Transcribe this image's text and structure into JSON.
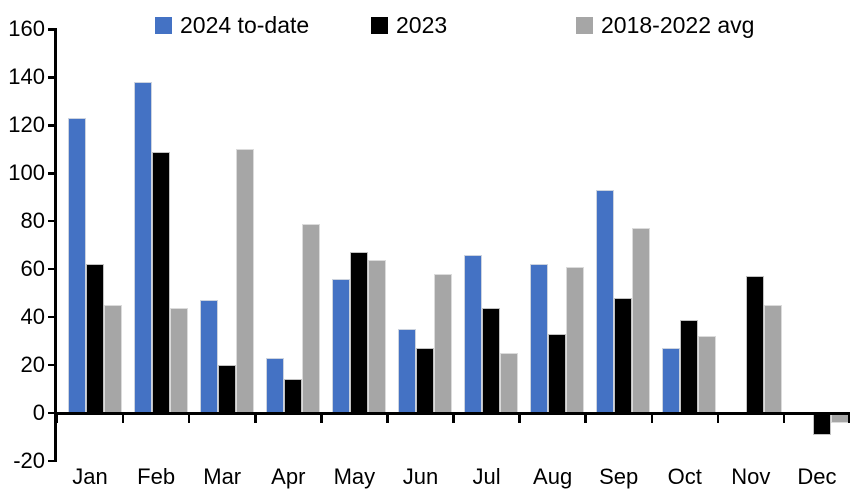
{
  "chart_data": {
    "type": "bar",
    "title": "",
    "categories": [
      "Jan",
      "Feb",
      "Mar",
      "Apr",
      "May",
      "Jun",
      "Jul",
      "Aug",
      "Sep",
      "Oct",
      "Nov",
      "Dec"
    ],
    "series": [
      {
        "name": "2024 to-date",
        "color": "#4472C4",
        "values": [
          123,
          138,
          47,
          23,
          56,
          35,
          66,
          62,
          93,
          27,
          null,
          null
        ]
      },
      {
        "name": "2023",
        "color": "#000000",
        "values": [
          62,
          109,
          20,
          14,
          67,
          27,
          44,
          33,
          48,
          39,
          57,
          -9
        ]
      },
      {
        "name": "2018-2022 avg",
        "color": "#A6A6A6",
        "values": [
          45,
          44,
          110,
          79,
          64,
          58,
          25,
          61,
          77,
          32,
          45,
          -4
        ]
      }
    ],
    "ylim": [
      -20,
      160
    ],
    "ytick_step": 20,
    "ytick_labels": [
      "160",
      "140",
      "120",
      "100",
      "80",
      "60",
      "40",
      "20",
      "0",
      "-20"
    ],
    "grid": false,
    "legend_position": "top",
    "axis_color": "#000000",
    "text_color": "#000000",
    "background_color": "#FFFFFF"
  }
}
